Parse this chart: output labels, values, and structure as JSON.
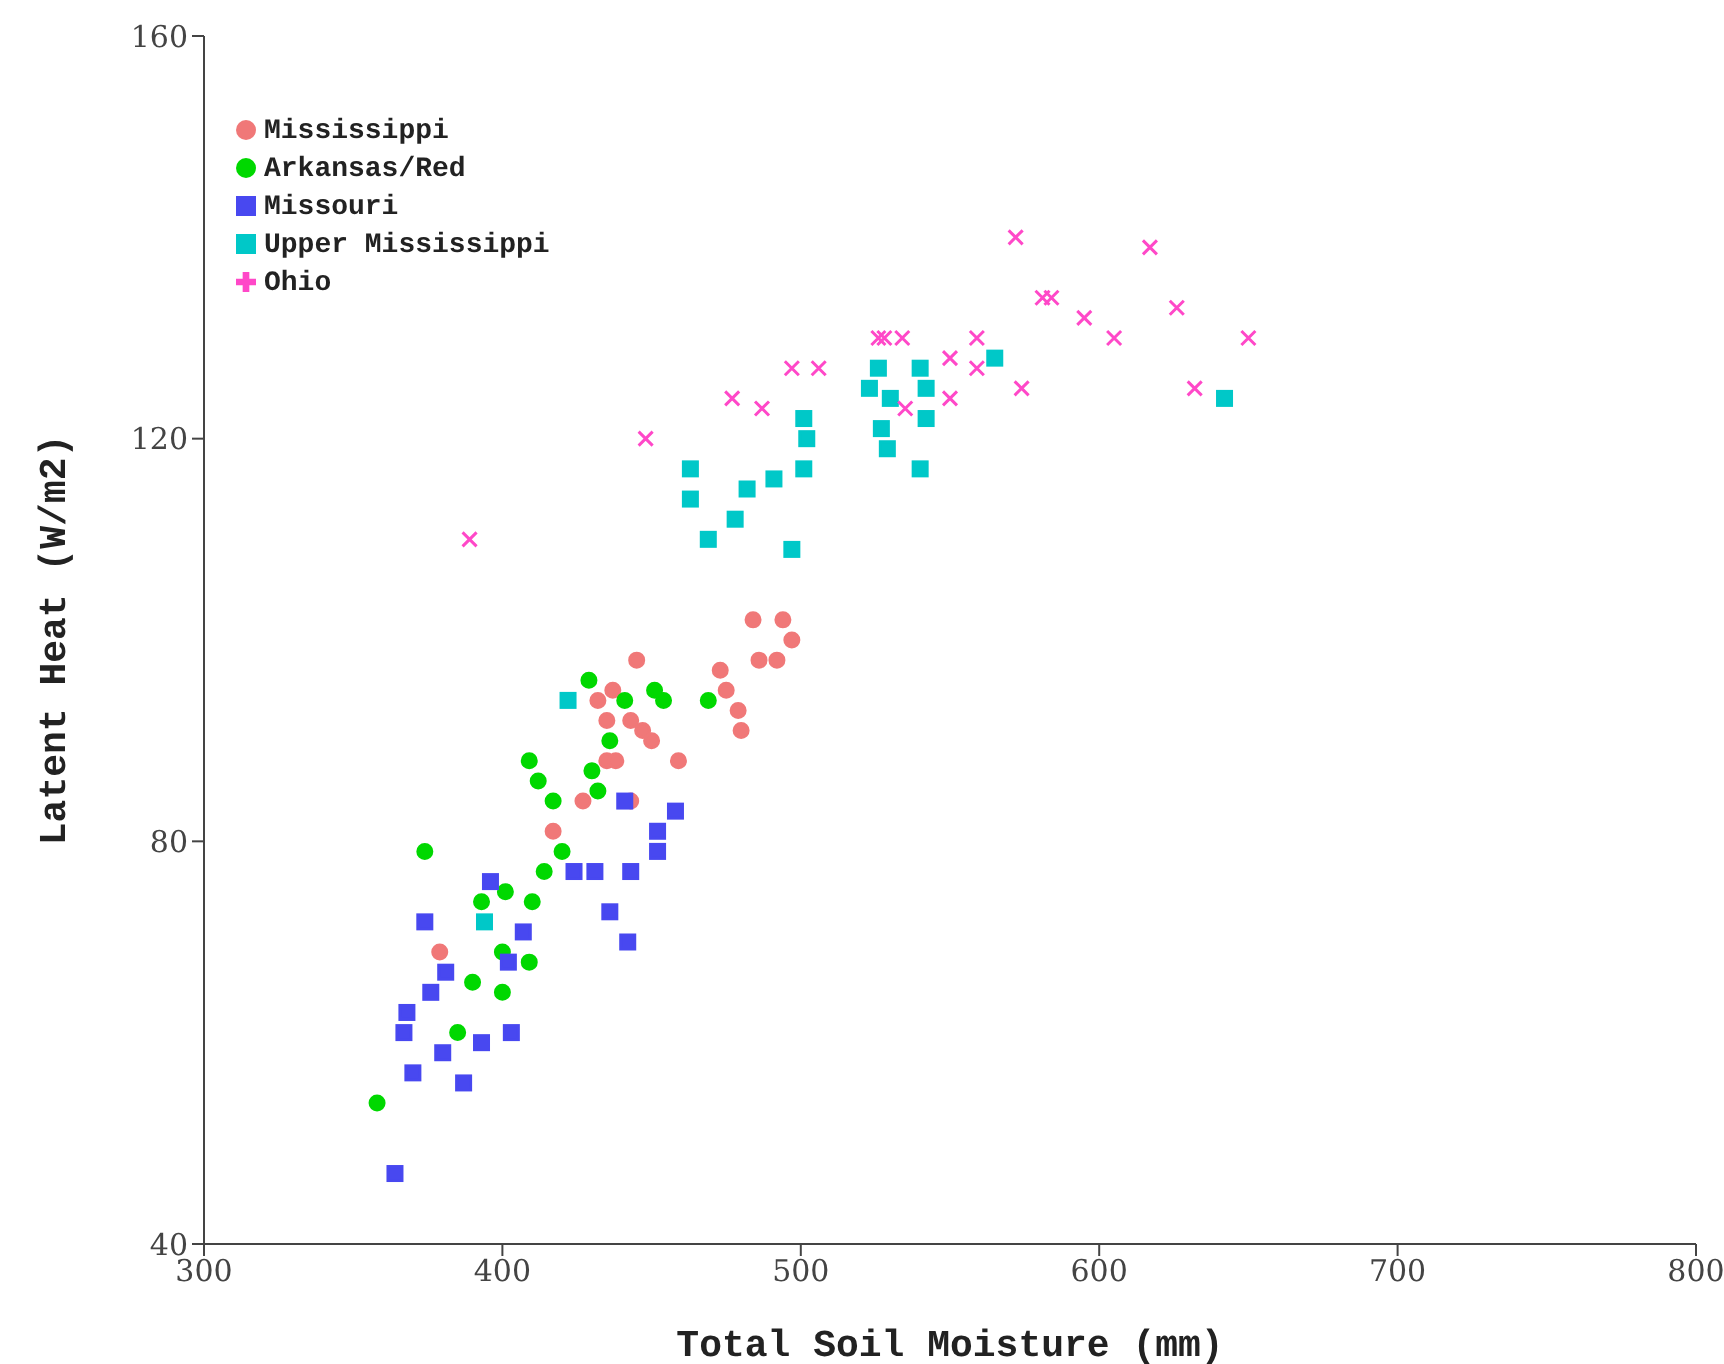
{
  "chart_data": {
    "type": "scatter",
    "xlabel": "Total Soil Moisture (mm)",
    "ylabel": "Latent Heat (W/m2)",
    "xlim": [
      300,
      800
    ],
    "xticks": [
      300,
      400,
      500,
      600,
      700,
      800
    ],
    "ylim": [
      40,
      160
    ],
    "yticks": [
      40,
      80,
      120,
      160
    ],
    "grid": false,
    "legend": "top left",
    "series": [
      {
        "name": "Mississippi",
        "color": "#f07878",
        "marker": "circle",
        "x": [
          445,
          437,
          432,
          435,
          443,
          447,
          450,
          459,
          435,
          438,
          427,
          443,
          417,
          473,
          475,
          479,
          480,
          484,
          494,
          497,
          486,
          492,
          379
        ],
        "values": [
          98,
          95,
          94,
          92,
          92,
          91,
          90,
          88,
          88,
          88,
          84,
          84,
          81,
          97,
          95,
          93,
          91,
          102,
          102,
          100,
          98,
          98,
          69
        ]
      },
      {
        "name": "Arkansas/Red",
        "color": "#00d800",
        "marker": "circle",
        "x": [
          429,
          441,
          451,
          454,
          469,
          436,
          409,
          412,
          417,
          430,
          432,
          374,
          420,
          414,
          401,
          393,
          410,
          400,
          409,
          390,
          400,
          385,
          358
        ],
        "values": [
          96,
          94,
          95,
          94,
          94,
          90,
          88,
          86,
          84,
          87,
          85,
          79,
          79,
          77,
          75,
          74,
          74,
          69,
          68,
          66,
          65,
          61,
          54
        ]
      },
      {
        "name": "Missouri",
        "color": "#4848f0",
        "marker": "square",
        "x": [
          441,
          458,
          452,
          452,
          443,
          431,
          424,
          436,
          442,
          396,
          374,
          407,
          402,
          381,
          376,
          368,
          367,
          403,
          393,
          380,
          370,
          387,
          364
        ],
        "values": [
          84,
          83,
          81,
          79,
          77,
          77,
          77,
          73,
          70,
          76,
          72,
          71,
          68,
          67,
          65,
          63,
          61,
          61,
          60,
          59,
          57,
          56,
          47
        ]
      },
      {
        "name": "Upper Mississippi",
        "color": "#00c8c8",
        "marker": "square",
        "x": [
          422,
          394,
          501,
          502,
          501,
          491,
          482,
          463,
          463,
          478,
          469,
          497,
          526,
          523,
          530,
          527,
          529,
          540,
          542,
          542,
          540,
          565,
          642
        ],
        "values": [
          94,
          72,
          122,
          120,
          117,
          116,
          115,
          117,
          114,
          112,
          110,
          109,
          127,
          125,
          124,
          121,
          119,
          127,
          125,
          122,
          117,
          128,
          124
        ]
      },
      {
        "name": "Ohio",
        "color": "#ff48c8",
        "marker": "cross",
        "x": [
          389,
          448,
          477,
          487,
          497,
          506,
          526,
          528,
          534,
          535,
          550,
          559,
          559,
          550,
          572,
          617,
          581,
          584,
          626,
          595,
          605,
          650,
          574,
          632
        ],
        "values": [
          110,
          120,
          124,
          123,
          127,
          127,
          130,
          130,
          130,
          123,
          128,
          130,
          127,
          124,
          140,
          139,
          134,
          134,
          133,
          132,
          130,
          130,
          125,
          125
        ]
      }
    ]
  }
}
